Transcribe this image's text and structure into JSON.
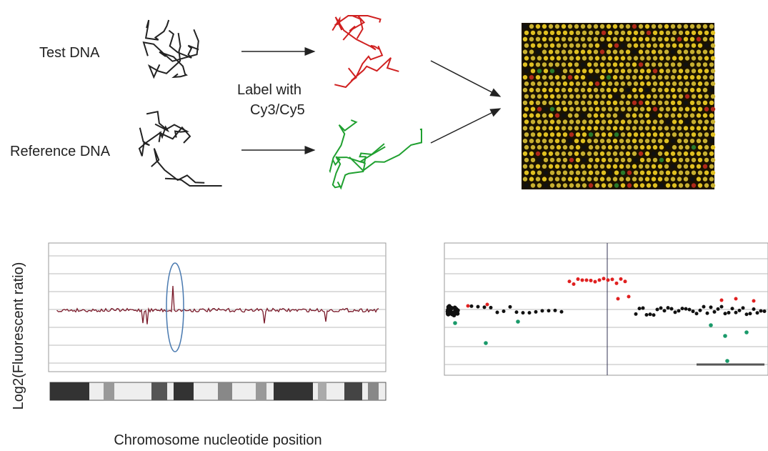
{
  "labels": {
    "test_dna": "Test DNA",
    "reference_dna": "Reference DNA",
    "label_line1": "Label with",
    "label_line2": "Cy3/Cy5"
  },
  "plot": {
    "y_axis_label": "Log2(Fluorescent ratio)",
    "x_axis_label": "Chromosome nucleotide position"
  }
}
